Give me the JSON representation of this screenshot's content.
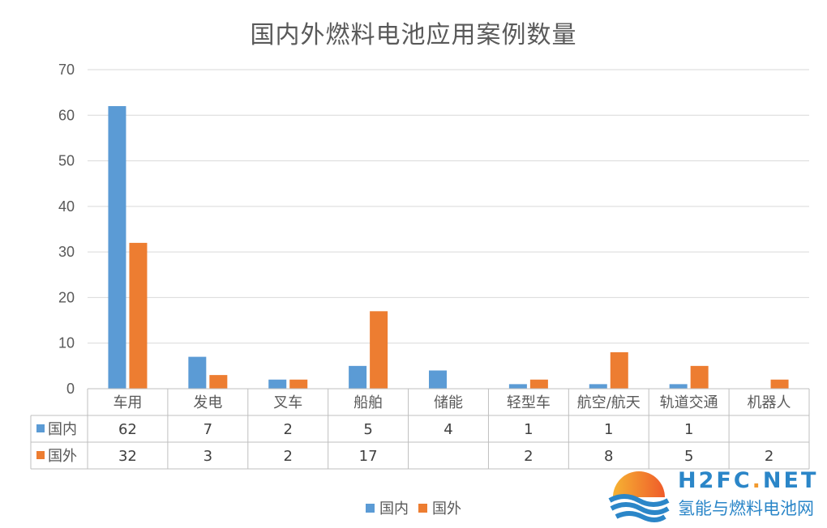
{
  "chart_data": {
    "type": "bar",
    "title": "国内外燃料电池应用案例数量",
    "categories": [
      "车用",
      "发电",
      "叉车",
      "船舶",
      "储能",
      "轻型车",
      "航空/航天",
      "轨道交通",
      "机器人"
    ],
    "series": [
      {
        "name": "国内",
        "color": "#5b9bd5",
        "values": [
          62,
          7,
          2,
          5,
          4,
          1,
          1,
          1,
          null
        ]
      },
      {
        "name": "国外",
        "color": "#ed7d31",
        "values": [
          32,
          3,
          2,
          17,
          null,
          2,
          8,
          5,
          2
        ]
      }
    ],
    "ylim": [
      0,
      70
    ],
    "yticks": [
      0,
      10,
      20,
      30,
      40,
      50,
      60,
      70
    ],
    "grid": true,
    "legend": "bottom",
    "data_table": true
  },
  "watermark": {
    "domain_prefix": "H2FC",
    "domain_dot": ".",
    "domain_suffix": "NET",
    "site_name": "氢能与燃料电池网"
  }
}
